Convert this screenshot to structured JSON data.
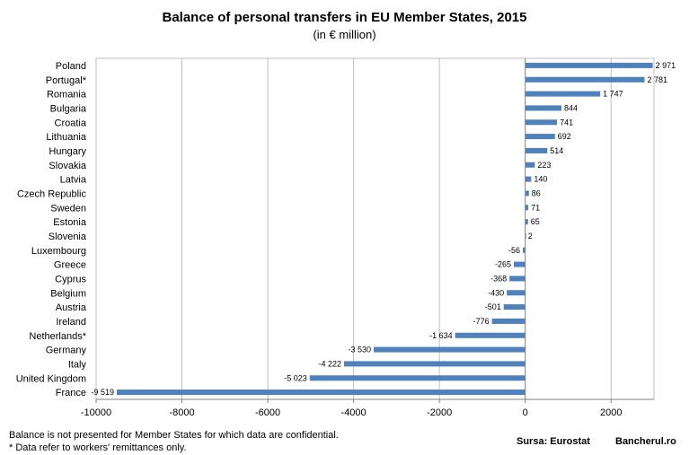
{
  "chart_data": {
    "type": "bar",
    "orientation": "horizontal",
    "title": "Balance of personal transfers in EU Member States, 2015",
    "subtitle": "(in € million)",
    "categories": [
      "Poland",
      "Portugal*",
      "Romania",
      "Bulgaria",
      "Croatia",
      "Lithuania",
      "Hungary",
      "Slovakia",
      "Latvia",
      "Czech Republic",
      "Sweden",
      "Estonia",
      "Slovenia",
      "Luxembourg",
      "Greece",
      "Cyprus",
      "Belgium",
      "Austria",
      "Ireland",
      "Netherlands*",
      "Germany",
      "Italy",
      "United Kingdom",
      "France"
    ],
    "values": [
      2971,
      2781,
      1747,
      844,
      741,
      692,
      514,
      223,
      140,
      86,
      71,
      65,
      2,
      -56,
      -265,
      -368,
      -430,
      -501,
      -776,
      -1634,
      -3530,
      -4222,
      -5023,
      -9519
    ],
    "value_labels": [
      "2 971",
      "2 781",
      "1 747",
      "844",
      "741",
      "692",
      "514",
      "223",
      "140",
      "86",
      "71",
      "65",
      "2",
      "-56",
      "-265",
      "-368",
      "-430",
      "-501",
      "-776",
      "-1 634",
      "-3 530",
      "-4 222",
      "-5 023",
      "-9 519"
    ],
    "xlim": [
      -10000,
      3000
    ],
    "xticks": [
      -10000,
      -8000,
      -6000,
      -4000,
      -2000,
      0,
      2000
    ],
    "xtick_labels": [
      "-10000",
      "-8000",
      "-6000",
      "-4000",
      "-2000",
      "0",
      "2000"
    ],
    "grid": "vertical",
    "bar_color": "#4f81bd"
  },
  "footnotes": {
    "line1": "Balance is not presented for Member States for which data are confidential.",
    "line2": "* Data refer to workers' remittances only."
  },
  "source": "Sursa: Eurostat",
  "brand": "Bancherul.ro"
}
